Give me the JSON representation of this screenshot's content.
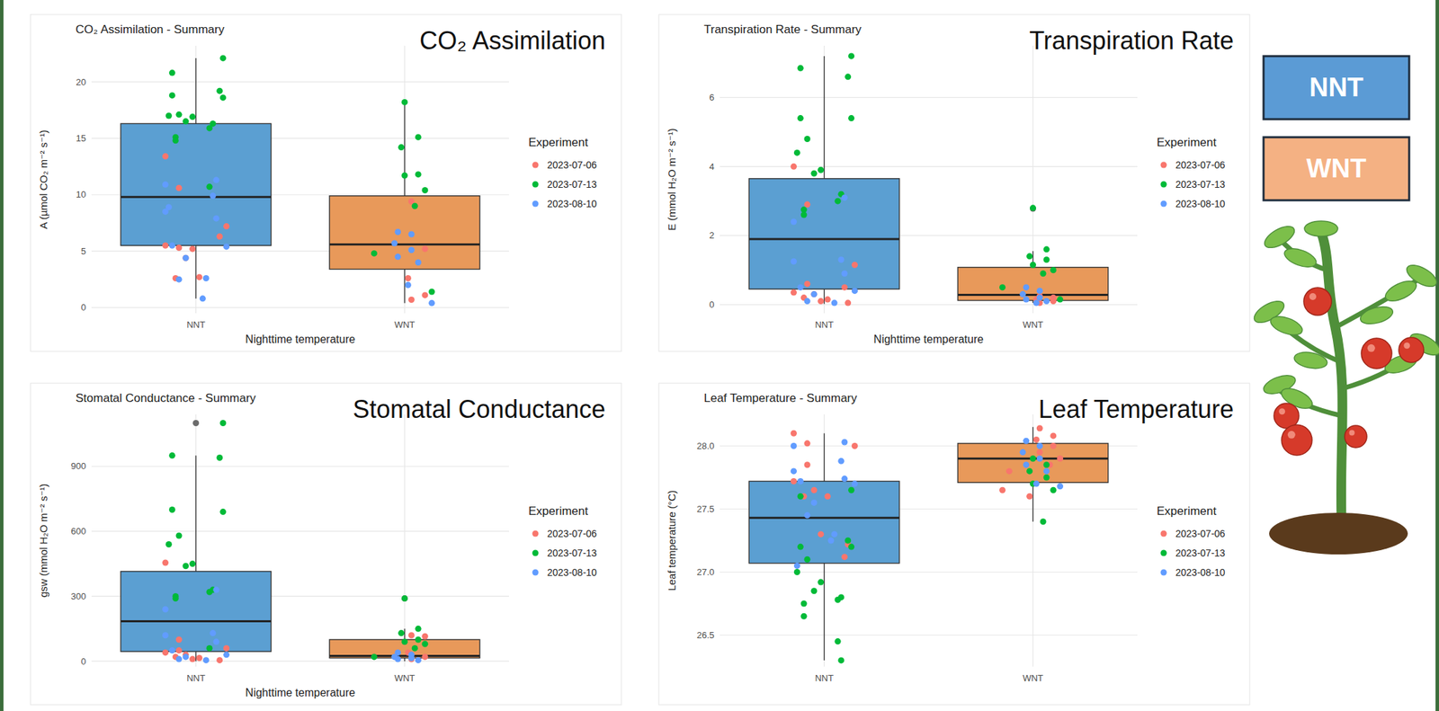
{
  "chart_data": [
    {
      "type": "box",
      "title": "CO₂ Assimilation - Summary",
      "heading": "CO₂ Assimilation",
      "x_label": "Nighttime temperature",
      "y_label": "A (µmol CO₂ m⁻² s⁻¹)",
      "categories": [
        "NNT",
        "WNT"
      ],
      "colors": [
        "#5b9fd2",
        "#e8995a"
      ],
      "boxes": [
        {
          "min": 0.8,
          "q1": 5.5,
          "median": 9.8,
          "q3": 16.3,
          "max": 22.1,
          "outliers": []
        },
        {
          "min": 0.4,
          "q1": 3.4,
          "median": 5.6,
          "q3": 9.9,
          "max": 18.2,
          "outliers": []
        }
      ],
      "series": [
        {
          "name": "2023-07-06",
          "color": "#f8766d",
          "points": [
            [
              13.4,
              10.6,
              7.2,
              5.3,
              5.5,
              4.4,
              2.6,
              2.7,
              5.2,
              6.3
            ],
            [
              9.4,
              5.2,
              2.6,
              1.1,
              0.7
            ]
          ]
        },
        {
          "name": "2023-07-13",
          "color": "#00ba38",
          "points": [
            [
              22.1,
              20.8,
              19.2,
              18.8,
              18.6,
              17.1,
              17.0,
              16.9,
              16.5,
              16.3,
              15.9,
              15.1,
              14.8,
              10.7
            ],
            [
              18.2,
              15.1,
              14.2,
              11.8,
              11.7,
              10.4,
              9.0,
              4.8,
              1.4
            ]
          ]
        },
        {
          "name": "2023-08-10",
          "color": "#619cff",
          "points": [
            [
              11.3,
              10.9,
              9.9,
              8.5,
              7.9,
              5.5,
              5.4,
              4.4,
              2.5,
              2.6,
              0.8,
              8.9
            ],
            [
              6.7,
              6.5,
              5.7,
              5.1,
              4.5,
              4.0,
              2.0,
              0.4
            ]
          ]
        }
      ],
      "ylim": [
        -0.5,
        23.2
      ],
      "yticks": [
        0,
        5,
        10,
        15,
        20
      ],
      "grid": true,
      "legend": "right",
      "legend_title": "Experiment"
    },
    {
      "type": "box",
      "title": "Transpiration Rate - Summary",
      "heading": "Transpiration Rate",
      "x_label": "Nighttime temperature",
      "y_label": "E (mmol H₂O m⁻² s⁻¹)",
      "categories": [
        "NNT",
        "WNT"
      ],
      "colors": [
        "#5b9fd2",
        "#e8995a"
      ],
      "boxes": [
        {
          "min": 0.02,
          "q1": 0.45,
          "median": 1.9,
          "q3": 3.65,
          "max": 7.2,
          "outliers": []
        },
        {
          "min": 0.05,
          "q1": 0.12,
          "median": 0.28,
          "q3": 1.08,
          "max": 1.55,
          "outliers": [
            2.78
          ]
        }
      ],
      "series": [
        {
          "name": "2023-07-06",
          "color": "#f8766d",
          "points": [
            [
              4.0,
              2.9,
              1.15,
              0.6,
              0.35,
              0.3,
              0.2,
              0.15,
              0.1,
              0.05,
              0.5
            ],
            [
              0.25,
              0.2,
              0.15,
              0.1,
              0.05
            ]
          ]
        },
        {
          "name": "2023-07-13",
          "color": "#00ba38",
          "points": [
            [
              7.2,
              6.85,
              6.6,
              5.4,
              5.4,
              4.8,
              4.4,
              3.9,
              3.8,
              3.2,
              3.0,
              2.75,
              2.6
            ],
            [
              2.8,
              1.6,
              1.4,
              1.3,
              1.15,
              1.0,
              0.9,
              0.5,
              0.15
            ]
          ]
        },
        {
          "name": "2023-08-10",
          "color": "#619cff",
          "points": [
            [
              3.1,
              2.4,
              1.3,
              1.25,
              0.9,
              0.5,
              0.4,
              0.3,
              0.1,
              0.05
            ],
            [
              0.5,
              0.4,
              0.3,
              0.2,
              0.15,
              0.1,
              0.05
            ]
          ]
        }
      ],
      "ylim": [
        -0.25,
        7.5
      ],
      "yticks": [
        0,
        2,
        4,
        6
      ],
      "grid": true,
      "legend": "right",
      "legend_title": "Experiment"
    },
    {
      "type": "box",
      "title": "Stomatal Conductance - Summary",
      "heading": "Stomatal Conductance",
      "x_label": "Nighttime temperature",
      "y_label": "gsw (mmol H₂O m⁻² s⁻¹)",
      "categories": [
        "NNT",
        "WNT"
      ],
      "colors": [
        "#5b9fd2",
        "#e8995a"
      ],
      "boxes": [
        {
          "min": 0,
          "q1": 45,
          "median": 185,
          "q3": 415,
          "max": 950,
          "outliers": [
            1100
          ]
        },
        {
          "min": 0,
          "q1": 15,
          "median": 25,
          "q3": 100,
          "max": 150,
          "outliers": [
            290
          ]
        }
      ],
      "series": [
        {
          "name": "2023-07-06",
          "color": "#f8766d",
          "points": [
            [
              455,
              100,
              60,
              50,
              40,
              30,
              20,
              15,
              10,
              5
            ],
            [
              120,
              115,
              40,
              20,
              10
            ]
          ]
        },
        {
          "name": "2023-07-13",
          "color": "#00ba38",
          "points": [
            [
              1100,
              950,
              940,
              700,
              690,
              580,
              540,
              450,
              440,
              330,
              320,
              300,
              290,
              60
            ],
            [
              290,
              150,
              130,
              100,
              90,
              80,
              60,
              20
            ]
          ]
        },
        {
          "name": "2023-08-10",
          "color": "#619cff",
          "points": [
            [
              330,
              240,
              130,
              120,
              90,
              50,
              30,
              20,
              10,
              5
            ],
            [
              40,
              30,
              20,
              15,
              10,
              5
            ]
          ]
        }
      ],
      "ylim": [
        -25,
        1140
      ],
      "yticks": [
        0,
        300,
        600,
        900
      ],
      "grid": true,
      "legend": "right",
      "legend_title": "Experiment"
    },
    {
      "type": "box",
      "title": "Leaf Temperature - Summary",
      "heading": "Leaf Temperature",
      "y_label": "Leaf temperature (°C)",
      "categories": [
        "NNT",
        "WNT"
      ],
      "colors": [
        "#5b9fd2",
        "#e8995a"
      ],
      "boxes": [
        {
          "min": 26.3,
          "q1": 27.07,
          "median": 27.43,
          "q3": 27.72,
          "max": 28.1,
          "outliers": []
        },
        {
          "min": 27.4,
          "q1": 27.71,
          "median": 27.9,
          "q3": 28.02,
          "max": 28.15,
          "outliers": []
        }
      ],
      "series": [
        {
          "name": "2023-07-06",
          "color": "#f8766d",
          "points": [
            [
              28.1,
              28.02,
              28.0,
              27.85,
              27.72,
              27.65,
              27.6,
              27.6,
              27.3,
              27.22,
              27.12
            ],
            [
              28.14,
              28.08,
              28.05,
              28.0,
              27.95,
              27.9,
              27.85,
              27.8,
              27.65,
              27.6
            ]
          ]
        },
        {
          "name": "2023-07-13",
          "color": "#00ba38",
          "points": [
            [
              27.65,
              27.6,
              27.25,
              27.2,
              27.2,
              27.1,
              27.0,
              26.92,
              26.85,
              26.8,
              26.78,
              26.75,
              26.65,
              26.45,
              26.3
            ],
            [
              27.9,
              27.85,
              27.8,
              27.75,
              27.7,
              27.65,
              27.4
            ]
          ]
        },
        {
          "name": "2023-08-10",
          "color": "#619cff",
          "points": [
            [
              28.03,
              28.0,
              27.88,
              27.8,
              27.74,
              27.72,
              27.7,
              27.55,
              27.45,
              27.3,
              27.25,
              27.05
            ],
            [
              28.04,
              28.0,
              27.95,
              27.9,
              27.85,
              27.8,
              27.7,
              27.68
            ]
          ]
        }
      ],
      "ylim": [
        26.25,
        28.25
      ],
      "yticks": [
        26.5,
        {
          "value": 27,
          "label": "27.0"
        },
        27.5,
        {
          "value": 28,
          "label": "28.0"
        }
      ],
      "grid": true,
      "legend": "right",
      "legend_title": "Experiment"
    }
  ],
  "key": [
    {
      "label": "NNT",
      "color": "#5b9bd5"
    },
    {
      "label": "WNT",
      "color": "#f4b183"
    }
  ]
}
